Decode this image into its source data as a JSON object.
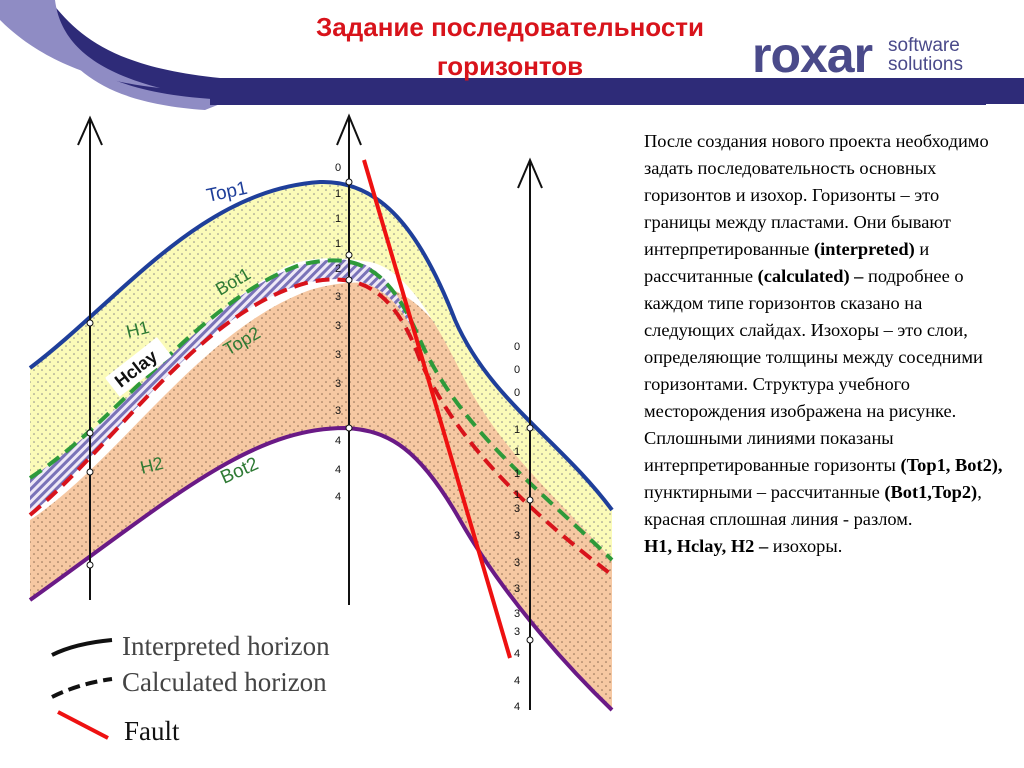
{
  "slide": {
    "title_line1": "Задание последовательности",
    "title_line2": "горизонтов"
  },
  "logo": {
    "brand": "roxar",
    "sub_line1": "software",
    "sub_line2": "solutions"
  },
  "diagram": {
    "horizon_labels": {
      "top1": "Top1",
      "bot1": "Bot1",
      "top2": "Top2",
      "bot2": "Bot2"
    },
    "isochore_labels": {
      "h1": "H1",
      "hclay": "Hclay",
      "h2": "H2"
    },
    "well_center_ticks": [
      "0",
      "1",
      "1",
      "1",
      "2",
      "3",
      "3",
      "3",
      "3",
      "3",
      "4",
      "4",
      "4"
    ],
    "well_right_ticks": [
      "0",
      "0",
      "0",
      "1",
      "1",
      "1",
      "1",
      "3",
      "3",
      "3",
      "3",
      "3",
      "3",
      "4",
      "4",
      "4"
    ],
    "legend": {
      "interpreted": "Interpreted horizon",
      "calculated": "Calculated horizon",
      "fault": "Fault"
    }
  },
  "colors": {
    "title": "#d8131b",
    "logo": "#4a4a8a",
    "band_dark": "#2e2b78",
    "band_light": "#8f8cc4",
    "top1_line": "#1f3f9a",
    "bot2_line": "#6a1a86",
    "calc_green": "#2e9a3a",
    "calc_red": "#d8131b",
    "fault": "#ee1111",
    "h1_fill": "#fbfbb8",
    "h2_fill": "#f6c8a2",
    "hclay_stripes": "#7a73b8"
  },
  "description": {
    "p1": "После создания нового проекта необходимо задать последовательность основных горизонтов и изохор. Горизонты – это границы между пластами. Они бывают интерпретированные",
    "interpreted": "(interpreted)",
    "p2": " и рассчитанные ",
    "calculated": "(calculated) –",
    "p3": " подробнее о каждом типе горизонтов сказано на следующих слайдах. Изохоры – это слои, определяющие толщины между соседними горизонтами. Структура учебного месторождения изображена на рисунке. Сплошными линиями показаны интерпретированные горизонты",
    "top_bot": "(Top1, Bot2),",
    "p4": " пунктирными – рассчитанные ",
    "bot_top": "(Bot1,Top2)",
    "p5": ", красная сплошная линия - разлом.",
    "isochores": "H1, Hclay, H2 –",
    "p6": " изохоры."
  }
}
